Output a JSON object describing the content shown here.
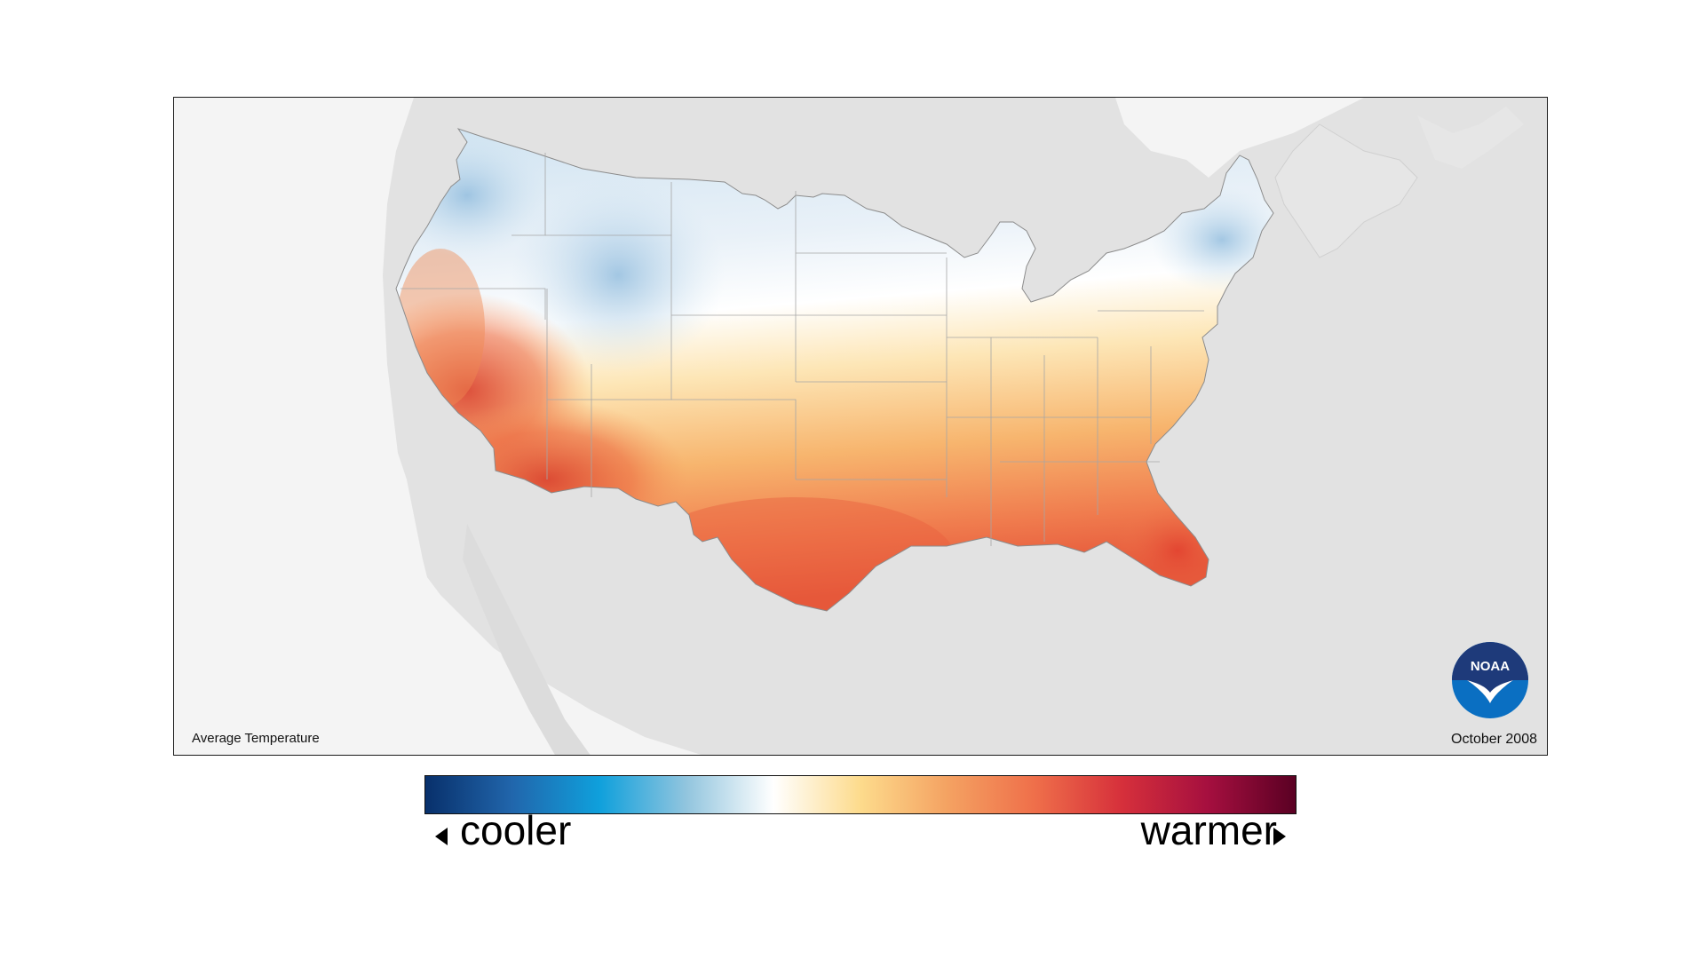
{
  "map": {
    "title": "Average Temperature",
    "date": "October 2008",
    "logo_text": "NOAA"
  },
  "legend": {
    "low_label": "cooler",
    "high_label": "warmer",
    "colors": [
      "#08306b",
      "#2166ac",
      "#0fa0dc",
      "#92c5de",
      "#ffffff",
      "#fddb8c",
      "#f4a262",
      "#ef6f4a",
      "#d6303b",
      "#a50f3f",
      "#5a0023"
    ]
  },
  "palette": {
    "land_background": "#e2e2e2",
    "ocean": "#f4f4f4",
    "state_border": "#9a9a9a"
  }
}
